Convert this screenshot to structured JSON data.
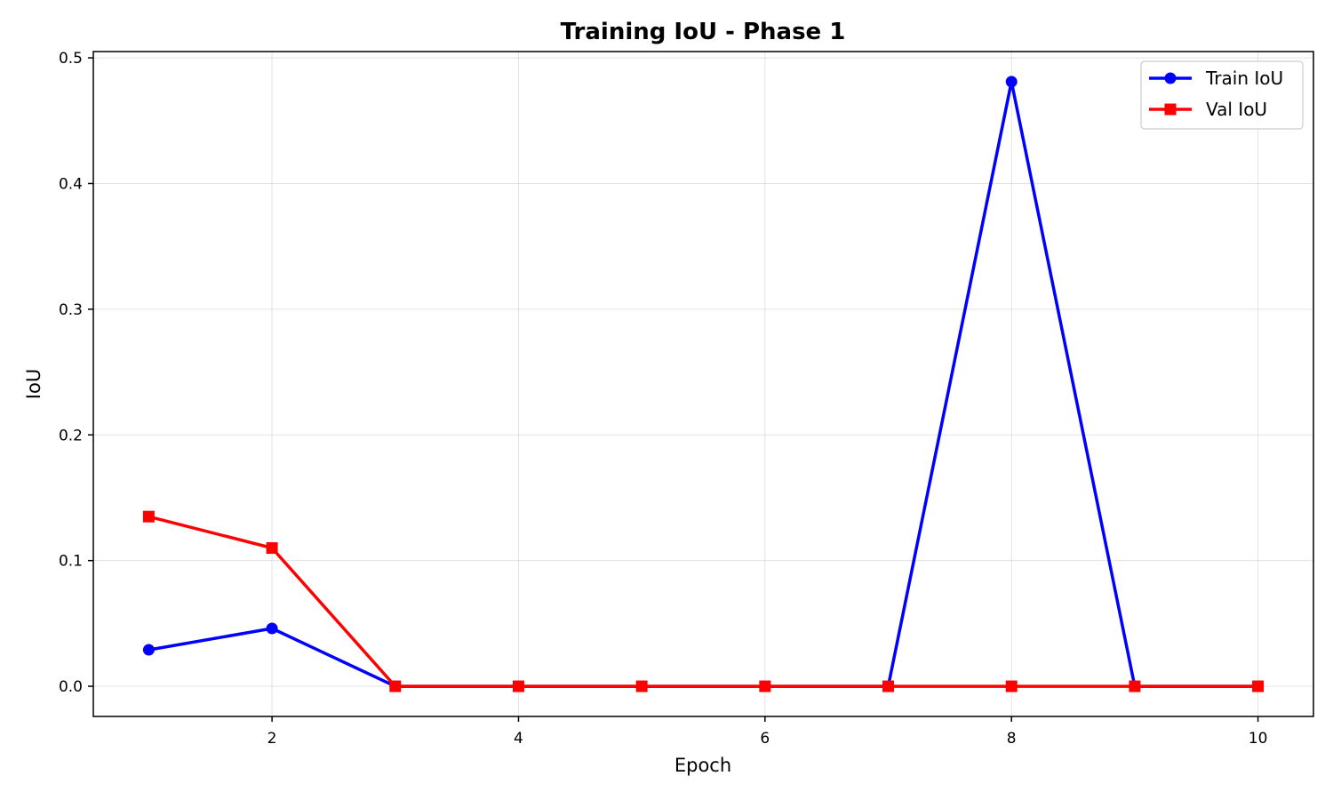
{
  "chart_data": {
    "type": "line",
    "title": "Training IoU - Phase 1",
    "xlabel": "Epoch",
    "ylabel": "IoU",
    "x": [
      1,
      2,
      3,
      4,
      5,
      6,
      7,
      8,
      9,
      10
    ],
    "xlim": [
      0.55,
      10.45
    ],
    "ylim": [
      -0.024,
      0.505
    ],
    "xticks": [
      2,
      4,
      6,
      8,
      10
    ],
    "yticks": [
      0.0,
      0.1,
      0.2,
      0.3,
      0.4,
      0.5
    ],
    "xtick_labels": [
      "2",
      "4",
      "6",
      "8",
      "10"
    ],
    "ytick_labels": [
      "0.0",
      "0.1",
      "0.2",
      "0.3",
      "0.4",
      "0.5"
    ],
    "grid": true,
    "legend_position": "top-right",
    "series": [
      {
        "name": "Train IoU",
        "color": "#0000ff",
        "marker": "circle",
        "values": [
          0.029,
          0.046,
          0.0,
          0.0,
          0.0,
          0.0,
          0.0,
          0.481,
          0.0,
          0.0
        ]
      },
      {
        "name": "Val IoU",
        "color": "#ff0000",
        "marker": "square",
        "values": [
          0.135,
          0.11,
          0.0,
          0.0,
          0.0,
          0.0,
          0.0,
          0.0,
          0.0,
          0.0
        ]
      }
    ]
  }
}
